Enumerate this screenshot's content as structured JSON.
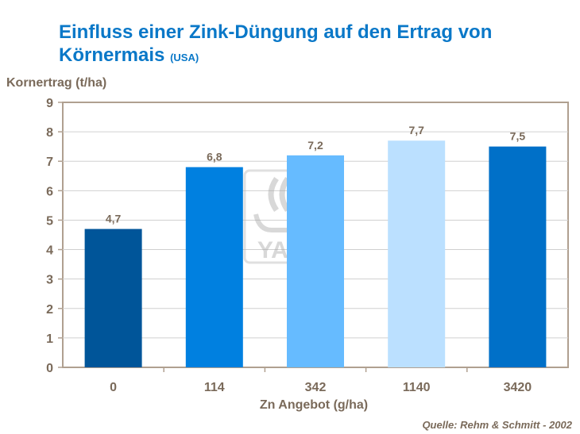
{
  "title": "Einfluss einer Zink-Düngung auf den Ertrag von Körnermais",
  "title_suffix": "(USA)",
  "source": "Quelle: Rehm & Schmitt - 2002",
  "watermark": "YARA",
  "chart_data": {
    "type": "bar",
    "categories": [
      "0",
      "114",
      "342",
      "1140",
      "3420"
    ],
    "values": [
      4.7,
      6.8,
      7.2,
      7.7,
      7.5
    ],
    "data_labels": [
      "4,7",
      "6,8",
      "7,2",
      "7,7",
      "7,5"
    ],
    "colors": [
      "#005599",
      "#0080e0",
      "#66bbff",
      "#bbe0ff",
      "#0070c8"
    ],
    "xlabel": "Zn Angebot (g/ha)",
    "ylabel": "Kornertrag (t/ha)",
    "ylim": [
      0,
      9
    ],
    "yticks": [
      "0",
      "1",
      "2",
      "3",
      "4",
      "5",
      "6",
      "7",
      "8",
      "9"
    ],
    "grid": true
  }
}
